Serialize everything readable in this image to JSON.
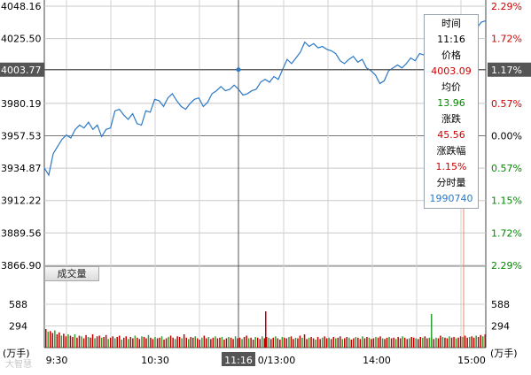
{
  "chart_data": {
    "type": "line",
    "price_axis": [
      "4048.16",
      "4025.50",
      "4003.77",
      "3980.19",
      "3957.53",
      "3934.87",
      "3912.22",
      "3889.56",
      "3866.90"
    ],
    "price_ticks": [
      4048.16,
      4025.5,
      4003.77,
      3980.19,
      3957.53,
      3934.87,
      3912.22,
      3889.56,
      3866.9
    ],
    "pct_axis": [
      "2.29%",
      "1.72%",
      "1.17%",
      "0.57%",
      "0.00%",
      "0.57%",
      "1.15%",
      "1.72%",
      "2.29%"
    ],
    "pct_colors": [
      "#d00000",
      "#d00000",
      "#ffffff",
      "#d00000",
      "#000000",
      "#008800",
      "#008800",
      "#008800",
      "#008800"
    ],
    "highlight_index": 2,
    "ylim": [
      3866.9,
      4048.16
    ],
    "x_ticks": [
      "9:30",
      "10:30",
      "11:16",
      "0/13:00",
      "14:00",
      "15:00"
    ],
    "price_series_color": "#2b78c6",
    "price_points": [
      [
        0,
        3935
      ],
      [
        2,
        3930
      ],
      [
        4,
        3945
      ],
      [
        6,
        3950
      ],
      [
        8,
        3955
      ],
      [
        10,
        3958
      ],
      [
        12,
        3956
      ],
      [
        14,
        3962
      ],
      [
        16,
        3965
      ],
      [
        18,
        3963
      ],
      [
        20,
        3967
      ],
      [
        22,
        3962
      ],
      [
        24,
        3965
      ],
      [
        26,
        3957
      ],
      [
        28,
        3962
      ],
      [
        30,
        3963
      ],
      [
        32,
        3975
      ],
      [
        34,
        3976
      ],
      [
        36,
        3972
      ],
      [
        38,
        3969
      ],
      [
        40,
        3973
      ],
      [
        42,
        3966
      ],
      [
        44,
        3965
      ],
      [
        46,
        3975
      ],
      [
        48,
        3974
      ],
      [
        50,
        3983
      ],
      [
        52,
        3982
      ],
      [
        54,
        3978
      ],
      [
        56,
        3984
      ],
      [
        58,
        3987
      ],
      [
        60,
        3982
      ],
      [
        62,
        3978
      ],
      [
        64,
        3976
      ],
      [
        66,
        3980
      ],
      [
        68,
        3983
      ],
      [
        70,
        3984
      ],
      [
        72,
        3978
      ],
      [
        74,
        3981
      ],
      [
        76,
        3987
      ],
      [
        78,
        3989
      ],
      [
        80,
        3992
      ],
      [
        82,
        3989
      ],
      [
        84,
        3990
      ],
      [
        86,
        3993
      ],
      [
        88,
        3990
      ],
      [
        90,
        3986
      ],
      [
        92,
        3987
      ],
      [
        94,
        3989
      ],
      [
        96,
        3990
      ],
      [
        98,
        3995
      ],
      [
        100,
        3997
      ],
      [
        102,
        3995
      ],
      [
        104,
        3999
      ],
      [
        106,
        3997
      ],
      [
        108,
        4004
      ],
      [
        110,
        4011
      ],
      [
        112,
        4008
      ],
      [
        114,
        4012
      ],
      [
        116,
        4016
      ],
      [
        118,
        4023
      ],
      [
        120,
        4020
      ],
      [
        122,
        4022
      ],
      [
        124,
        4019
      ],
      [
        126,
        4020
      ],
      [
        128,
        4018
      ],
      [
        130,
        4017
      ],
      [
        132,
        4015
      ],
      [
        134,
        4010
      ],
      [
        136,
        4008
      ],
      [
        138,
        4011
      ],
      [
        140,
        4013
      ],
      [
        142,
        4009
      ],
      [
        144,
        4011
      ],
      [
        146,
        4005
      ],
      [
        148,
        4003
      ],
      [
        150,
        4000
      ],
      [
        152,
        3994
      ],
      [
        154,
        3996
      ],
      [
        156,
        4003
      ],
      [
        158,
        4005
      ],
      [
        160,
        4007
      ],
      [
        162,
        4005
      ],
      [
        164,
        4008
      ],
      [
        166,
        4012
      ],
      [
        168,
        4010
      ],
      [
        170,
        4015
      ],
      [
        172,
        4014
      ],
      [
        174,
        4016
      ],
      [
        176,
        4018
      ],
      [
        178,
        4016
      ],
      [
        180,
        4020
      ],
      [
        182,
        4028
      ],
      [
        184,
        4031
      ],
      [
        186,
        4033
      ],
      [
        188,
        4030
      ],
      [
        190,
        4034
      ],
      [
        192,
        4032
      ],
      [
        194,
        4034
      ],
      [
        196,
        4033
      ],
      [
        198,
        4037
      ],
      [
        200,
        4038
      ]
    ],
    "volume_axis": [
      "588",
      "294"
    ],
    "volume_ticks": [
      588,
      294
    ],
    "volume_unit": "(万手)",
    "volume_pattern": [
      0.28,
      0.24,
      0.25,
      0.22,
      0.26,
      0.2,
      0.23,
      0.18,
      0.21,
      0.17,
      0.2,
      0.18,
      0.16,
      0.2,
      0.15,
      0.18,
      0.17,
      0.14,
      0.19,
      0.16,
      0.15,
      0.2,
      0.14,
      0.17,
      0.18,
      0.15,
      0.16,
      0.19,
      0.13,
      0.15,
      0.17,
      0.14,
      0.16,
      0.18,
      0.12,
      0.15,
      0.17,
      0.13,
      0.16,
      0.14,
      0.18,
      0.15,
      0.13,
      0.17,
      0.16,
      0.14,
      0.19,
      0.15,
      0.13,
      0.16,
      0.14,
      0.15,
      0.17,
      0.12,
      0.14,
      0.16,
      0.18,
      0.15,
      0.13,
      0.17,
      0.16,
      0.14,
      0.2,
      0.15,
      0.13,
      0.16,
      0.15,
      0.17,
      0.14,
      0.12,
      0.15,
      0.18,
      0.14,
      0.16,
      0.13,
      0.15,
      0.17,
      0.14,
      0.15,
      0.16,
      0.12,
      0.14,
      0.16,
      0.15,
      0.13,
      0.17,
      0.14,
      0.15,
      0.13,
      0.16,
      0.18,
      0.14,
      0.15,
      0.12,
      0.16,
      0.15,
      0.13,
      0.17,
      0.14,
      0.16,
      0.15,
      0.13,
      0.15,
      0.17,
      0.14,
      0.12,
      0.16,
      0.15,
      0.14,
      0.16,
      0.17,
      0.13,
      0.15,
      0.14,
      0.18,
      0.15,
      0.2,
      0.13,
      0.15,
      0.16,
      0.14,
      0.12,
      0.16,
      0.13,
      0.15,
      0.17,
      0.14,
      0.15,
      0.13,
      0.16,
      0.14,
      0.15,
      0.17,
      0.13,
      0.14,
      0.16,
      0.15,
      0.12,
      0.14,
      0.16,
      0.15,
      0.13,
      0.17,
      0.14,
      0.16,
      0.15,
      0.13,
      0.14,
      0.16,
      0.15,
      0.17,
      0.14,
      0.13,
      0.15,
      0.16,
      0.14,
      0.15,
      0.13,
      0.16,
      0.14,
      0.17,
      0.15,
      0.13,
      0.14,
      0.16,
      0.15,
      0.14,
      0.13,
      0.16,
      0.15,
      0.17,
      0.14,
      0.15,
      0.16,
      0.13,
      0.15,
      0.14,
      0.18,
      0.16,
      0.15,
      0.14,
      0.17,
      0.15,
      0.16,
      0.14,
      0.15,
      0.17,
      0.16,
      0.18,
      0.15,
      0.16,
      0.17,
      0.15,
      0.18,
      0.16,
      0.19,
      0.17,
      0.2
    ]
  },
  "tooltip": {
    "time_label": "时间",
    "time_value": "11:16",
    "price_label": "价格",
    "price_value": "4003.09",
    "avg_label": "均价",
    "avg_value": "13.96",
    "change_label": "涨跌",
    "change_value": "45.56",
    "change_pct_label": "涨跌幅",
    "change_pct_value": "1.15%",
    "volume_label": "分时量",
    "volume_value": "1990740"
  },
  "volume_button_label": "成交量",
  "watermark": "大智慧"
}
